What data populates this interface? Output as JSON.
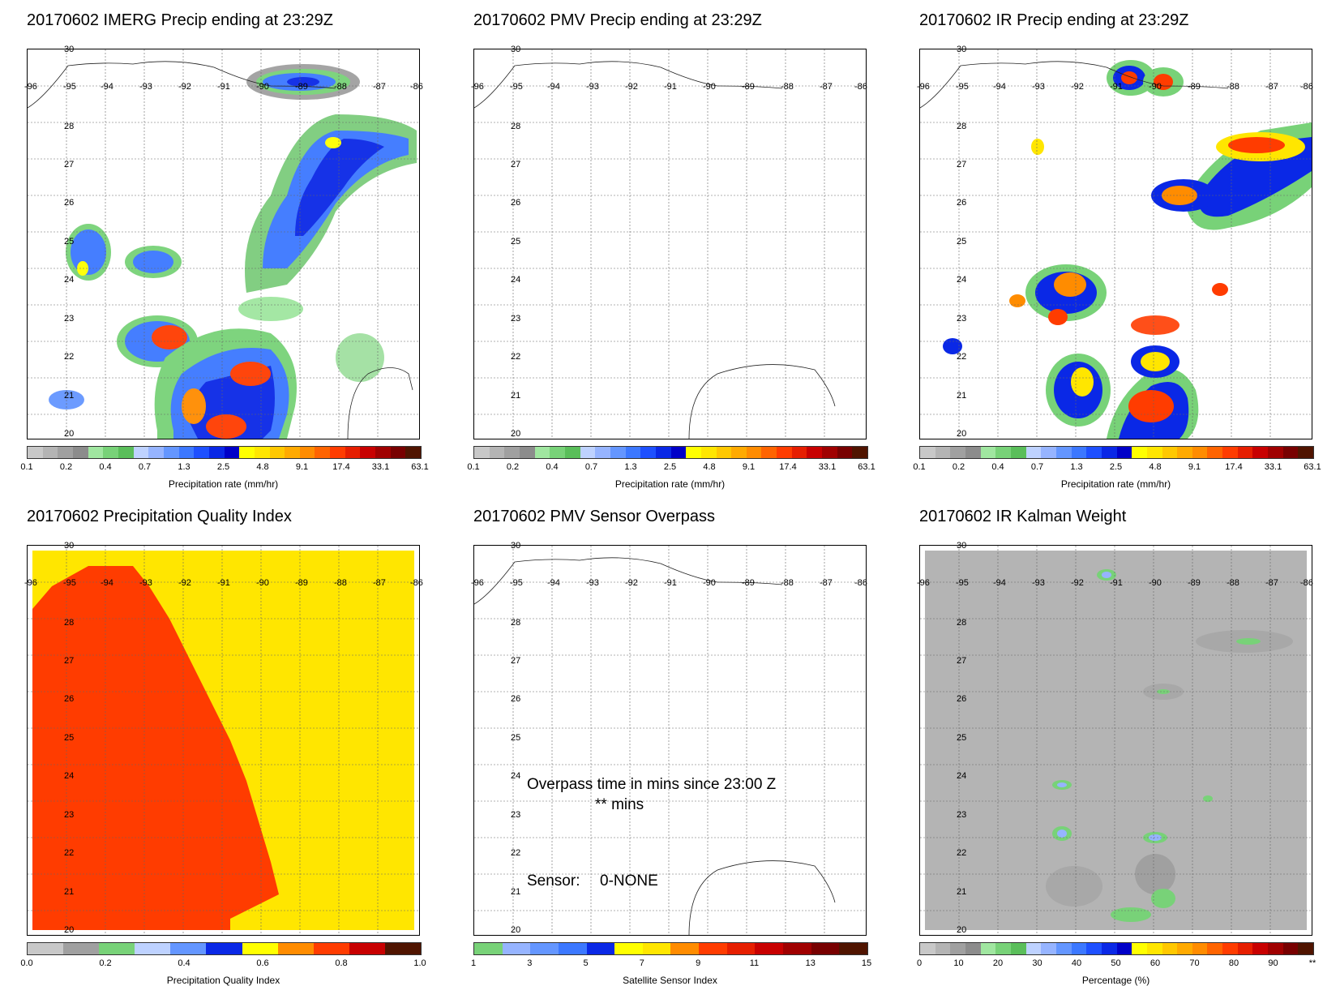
{
  "panels": {
    "imerg": {
      "title": "20170602 IMERG Precip ending at 23:29Z",
      "colorbar_title": "Precipitation rate (mm/hr)",
      "colorbar_ticks": [
        "0.1",
        "0.2",
        "0.4",
        "0.7",
        "1.3",
        "2.5",
        "4.8",
        "9.1",
        "17.4",
        "33.1",
        "63.1"
      ]
    },
    "pmv": {
      "title": "20170602 PMV Precip ending at 23:29Z",
      "colorbar_title": "Precipitation rate (mm/hr)",
      "colorbar_ticks": [
        "0.1",
        "0.2",
        "0.4",
        "0.7",
        "1.3",
        "2.5",
        "4.8",
        "9.1",
        "17.4",
        "33.1",
        "63.1"
      ]
    },
    "ir": {
      "title": "20170602 IR Precip ending at 23:29Z",
      "colorbar_title": "Precipitation rate (mm/hr)",
      "colorbar_ticks": [
        "0.1",
        "0.2",
        "0.4",
        "0.7",
        "1.3",
        "2.5",
        "4.8",
        "9.1",
        "17.4",
        "33.1",
        "63.1"
      ]
    },
    "pqi": {
      "title": "20170602 Precipitation Quality Index",
      "colorbar_title": "Precipitation Quality Index",
      "colorbar_ticks": [
        "0.0",
        "0.2",
        "0.4",
        "0.6",
        "0.8",
        "1.0"
      ]
    },
    "overpass": {
      "title": "20170602 PMV Sensor Overpass",
      "colorbar_title": "Satellite Sensor Index",
      "colorbar_ticks": [
        "1",
        "3",
        "5",
        "7",
        "9",
        "11",
        "13",
        "15"
      ],
      "overpass_line1": "Overpass time in mins since 23:00 Z",
      "overpass_line2": "** mins",
      "sensor_label": "Sensor:",
      "sensor_value": "0-NONE"
    },
    "kalman": {
      "title": "20170602 IR Kalman Weight",
      "colorbar_title": "Percentage (%)",
      "colorbar_ticks": [
        "0",
        "10",
        "20",
        "30",
        "40",
        "50",
        "60",
        "70",
        "80",
        "90",
        "**"
      ]
    }
  },
  "axes": {
    "lat_labels": [
      "30",
      "28",
      "27",
      "26",
      "25",
      "24",
      "23",
      "22",
      "21",
      "20"
    ],
    "lon_labels": [
      "-96",
      "-95",
      "-94",
      "-93",
      "-92",
      "-91",
      "-90",
      "-89",
      "-88",
      "-87",
      "-86"
    ]
  },
  "colors": {
    "precip_scale": [
      "#c8c8c8",
      "#b4b4b4",
      "#a0a0a0",
      "#8c8c8c",
      "#a0e6a0",
      "#78d278",
      "#5abe5a",
      "#bed2ff",
      "#96b4ff",
      "#6496ff",
      "#3c78ff",
      "#1e50ff",
      "#0a28e6",
      "#0000c8",
      "#ffff00",
      "#ffe600",
      "#ffc800",
      "#ffaa00",
      "#ff8c00",
      "#ff6400",
      "#ff3c00",
      "#e61e00",
      "#c80000",
      "#a00000",
      "#780000",
      "#501400"
    ],
    "pqi_scale": [
      "#c8c8c8",
      "#a0a0a0",
      "#78d278",
      "#bed2ff",
      "#6496ff",
      "#0a28e6",
      "#ffff00",
      "#ff8c00",
      "#ff3c00",
      "#c80000",
      "#501400"
    ],
    "sensor_scale": [
      "#78d278",
      "#96b4ff",
      "#6496ff",
      "#3c78ff",
      "#0a28e6",
      "#ffff00",
      "#ffe600",
      "#ff8c00",
      "#ff3c00",
      "#e61e00",
      "#c80000",
      "#a00000",
      "#780000",
      "#501400"
    ],
    "kalman_scale": [
      "#c8c8c8",
      "#b4b4b4",
      "#a0a0a0",
      "#8c8c8c",
      "#a0e6a0",
      "#78d278",
      "#5abe5a",
      "#bed2ff",
      "#96b4ff",
      "#6496ff",
      "#3c78ff",
      "#1e50ff",
      "#0a28e6",
      "#0000c8",
      "#ffff00",
      "#ffe600",
      "#ffc800",
      "#ffaa00",
      "#ff8c00",
      "#ff6400",
      "#ff3c00",
      "#e61e00",
      "#c80000",
      "#a00000",
      "#780000",
      "#501400"
    ],
    "pqi_red": "#ff3c00",
    "pqi_yellow": "#ffe600",
    "kalman_gray": "#b4b4b4"
  }
}
